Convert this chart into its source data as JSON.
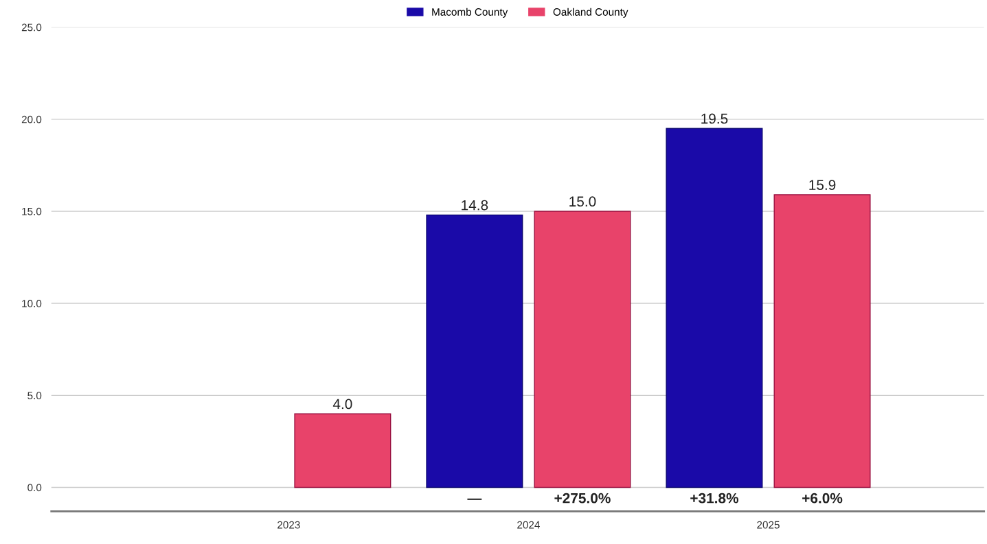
{
  "chart_data": {
    "type": "bar",
    "categories": [
      "2023",
      "2024",
      "2025"
    ],
    "series": [
      {
        "name": "Macomb County",
        "color": "#1a0aa8",
        "values": [
          null,
          14.8,
          19.5
        ],
        "value_labels": [
          null,
          "14.8",
          "19.5"
        ]
      },
      {
        "name": "Oakland County",
        "color": "#e8436a",
        "values": [
          4.0,
          15.0,
          15.9
        ],
        "value_labels": [
          "4.0",
          "15.0",
          "15.9"
        ]
      }
    ],
    "ylim": [
      -1.3,
      25
    ],
    "yticks": [
      {
        "value": 0,
        "label": "0.0"
      },
      {
        "value": 5,
        "label": "5.0"
      },
      {
        "value": 10,
        "label": "10.0"
      },
      {
        "value": 15,
        "label": "15.0"
      },
      {
        "value": 20,
        "label": "20.0"
      },
      {
        "value": 25,
        "label": "25.0"
      }
    ],
    "annotations": [
      "—",
      "+275.0%",
      "+31.8%",
      "+6.0%"
    ],
    "grid": "y",
    "legend": "top"
  }
}
